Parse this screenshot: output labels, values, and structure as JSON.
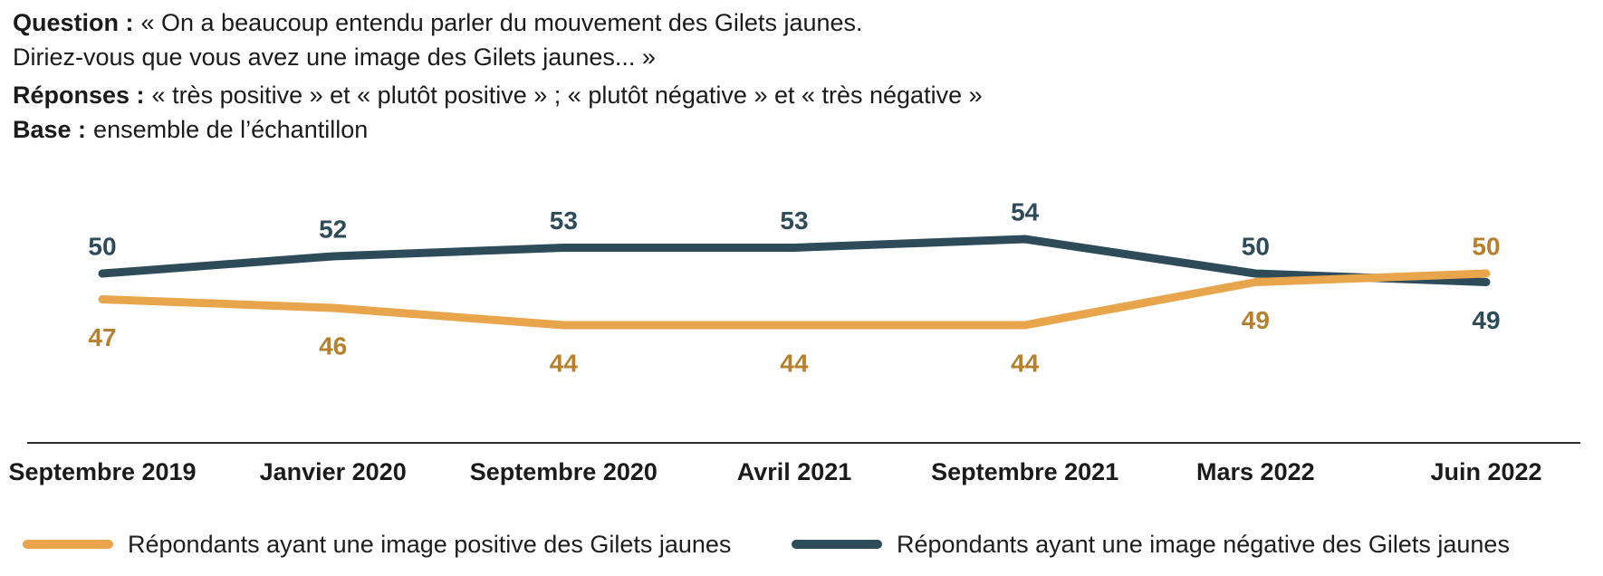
{
  "header": {
    "question_label": "Question :",
    "question_line1": "« On a beaucoup entendu parler du mouvement des Gilets jaunes.",
    "question_line2": "Diriez-vous que vous avez une image des Gilets jaunes... »",
    "responses_label": "Réponses :",
    "responses_text": "« très positive » et « plutôt positive » ; « plutôt négative » et « très négative »",
    "base_label": "Base :",
    "base_text": "ensemble de l’échantillon"
  },
  "chart_data": {
    "type": "line",
    "categories": [
      "Septembre 2019",
      "Janvier 2020",
      "Septembre 2020",
      "Avril 2021",
      "Septembre 2021",
      "Mars 2022",
      "Juin 2022"
    ],
    "series": [
      {
        "id": "negative",
        "name": "Répondants ayant une image négative des Gilets jaunes",
        "color": "#2E4B59",
        "label_color": "#2E4B59",
        "values": [
          50,
          52,
          53,
          53,
          54,
          50,
          49
        ]
      },
      {
        "id": "positive",
        "name": "Répondants ayant une image positive des Gilets jaunes",
        "color": "#E9A54C",
        "label_color": "#B5812E",
        "values": [
          47,
          46,
          44,
          44,
          44,
          49,
          50
        ]
      }
    ],
    "ylim": [
      40,
      60
    ],
    "grid": false,
    "legend_position": "bottom",
    "axis_color": "#2a2a2a",
    "tick_label_color": "#1b1b1b"
  }
}
